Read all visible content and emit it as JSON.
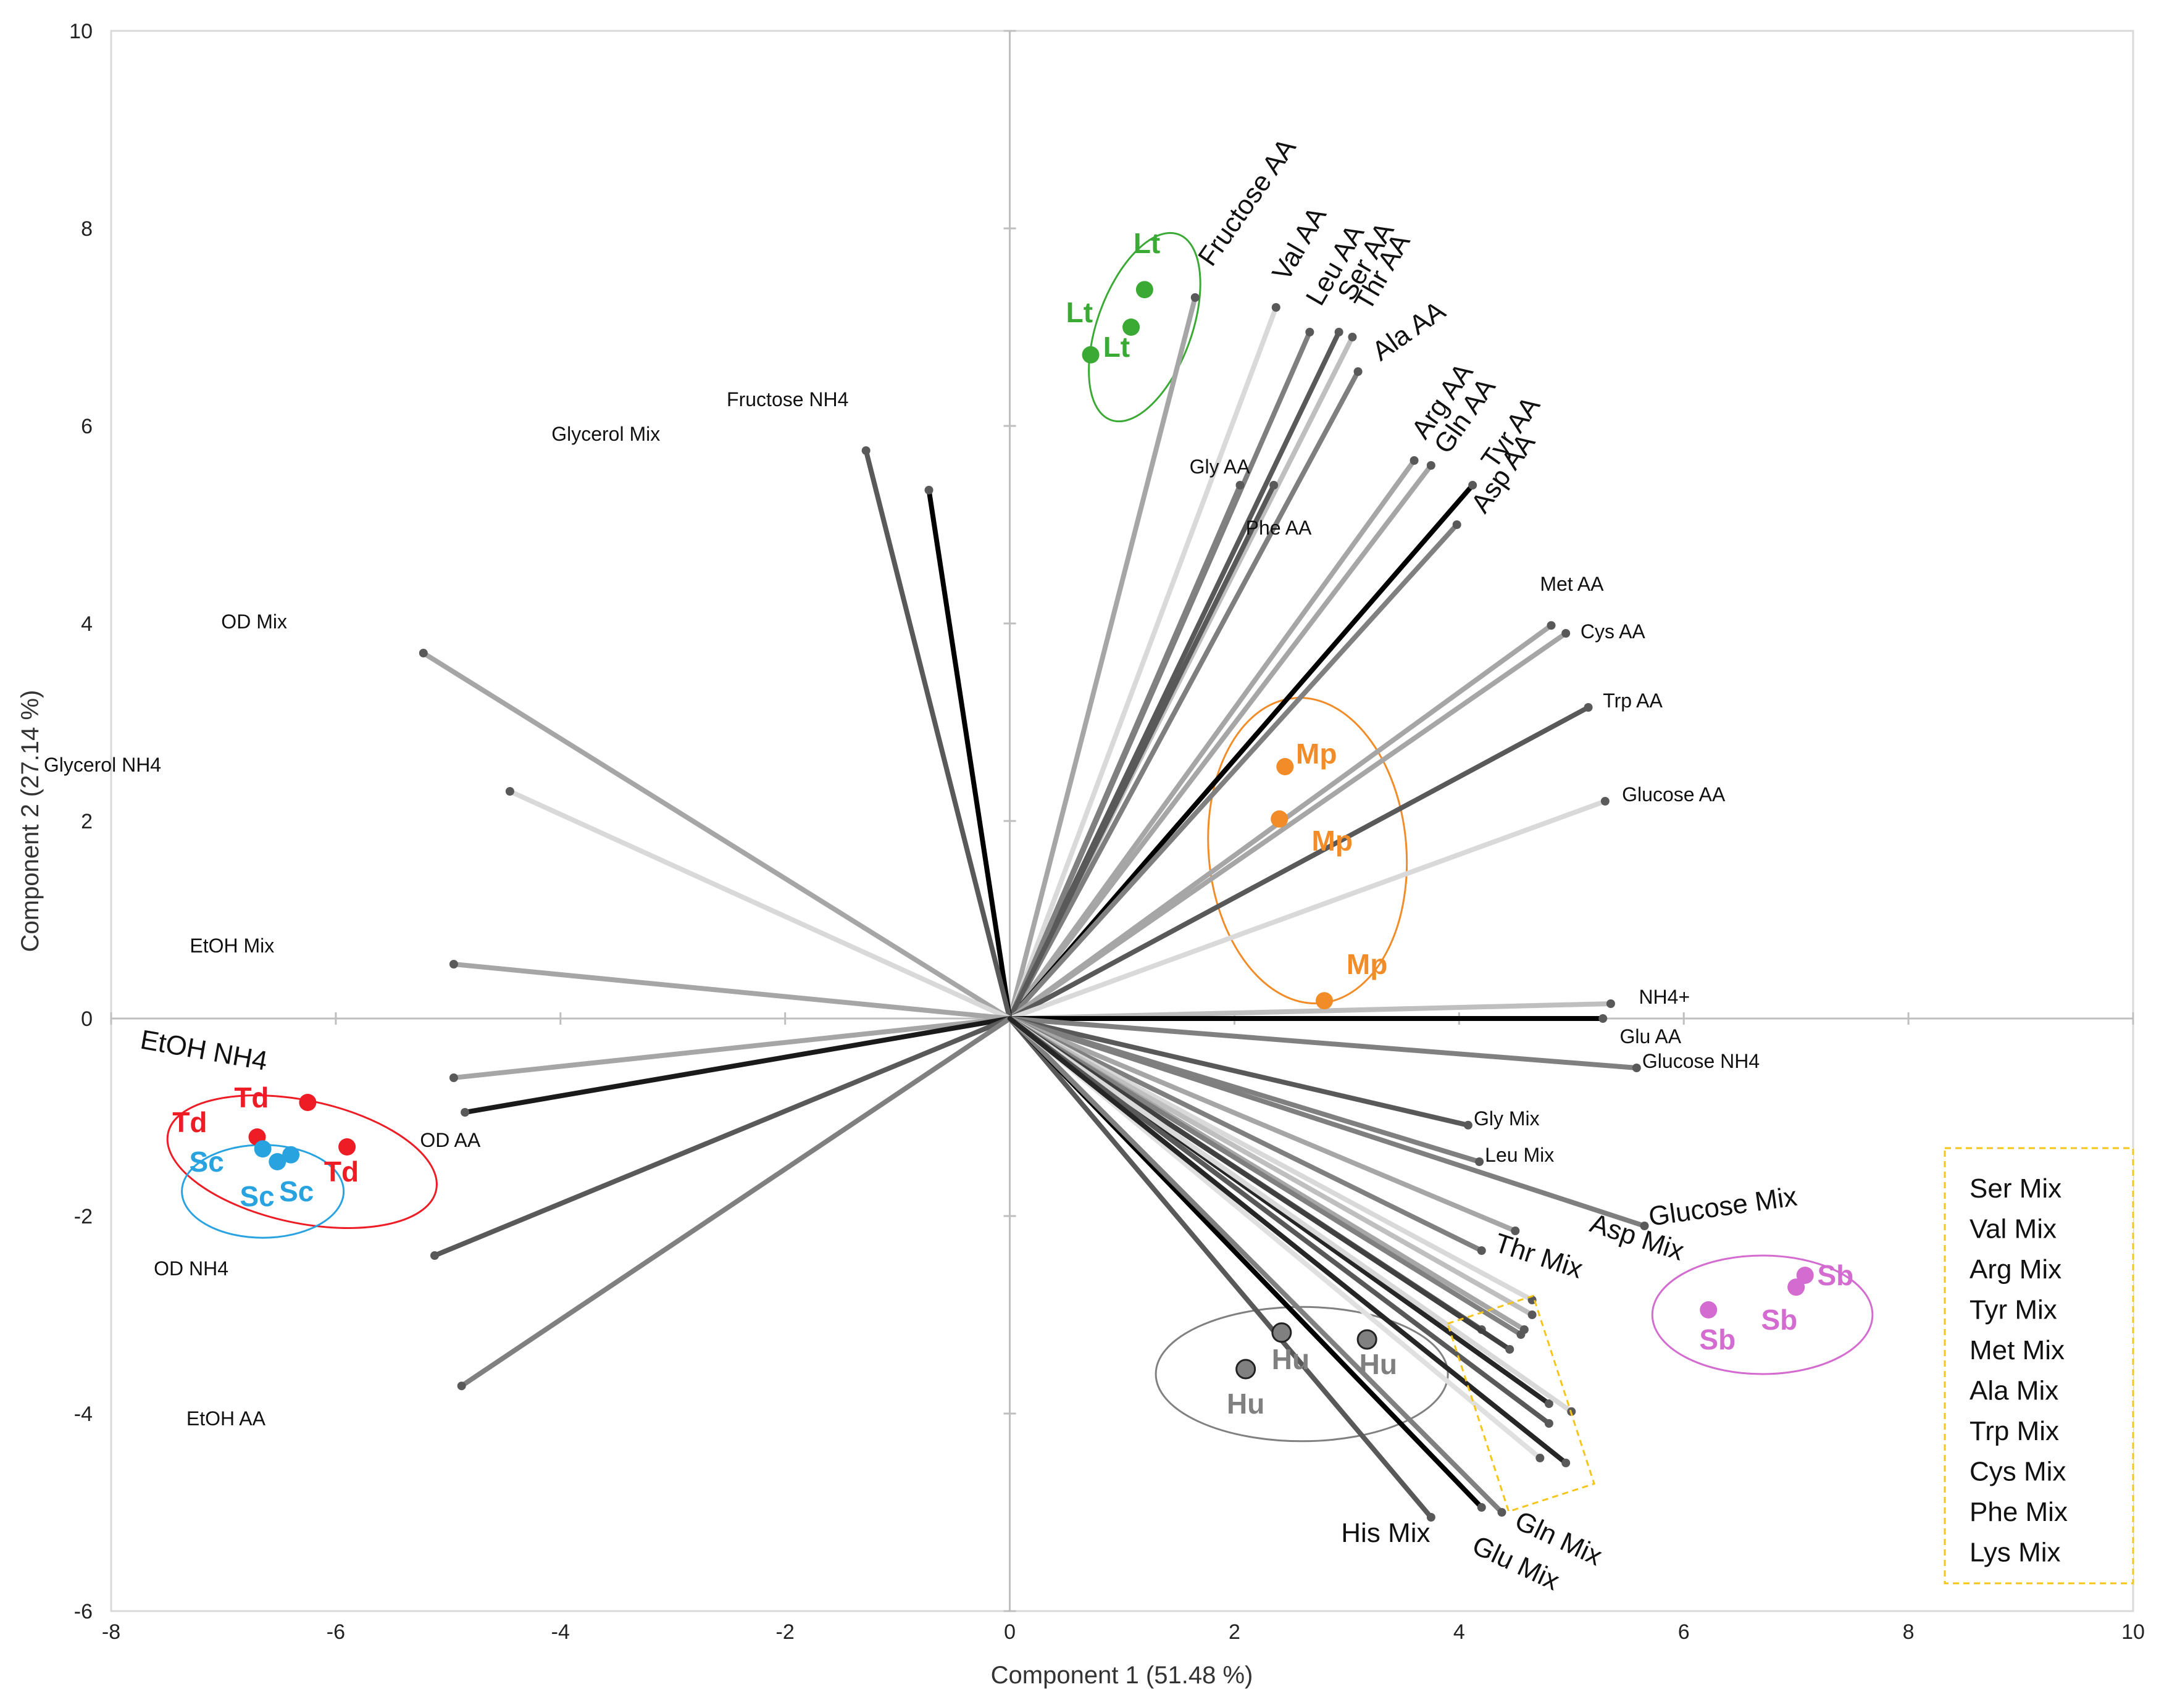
{
  "chart_data": {
    "type": "biplot",
    "xlabel": "Component 1 (51.48 %)",
    "ylabel": "Component 2 (27.14 %)",
    "xlim": [
      -8,
      10
    ],
    "ylim": [
      -6,
      10
    ],
    "xticks": [
      "-8",
      "-6",
      "-4",
      "-2",
      "0",
      "2",
      "4",
      "6",
      "8",
      "10"
    ],
    "yticks": [
      "-6",
      "-4",
      "-2",
      "0",
      "2",
      "4",
      "6",
      "8",
      "10"
    ],
    "loadings": [
      {
        "name": "Fructose AA",
        "x": 1.65,
        "y": 7.3,
        "shade": "#a6a6a6",
        "size": "large",
        "rot": -55,
        "dx": 0.15,
        "dy": 0.3
      },
      {
        "name": "Val AA",
        "x": 2.37,
        "y": 7.2,
        "shade": "#d9d9d9",
        "size": "large",
        "rot": -60,
        "dx": 0.1,
        "dy": 0.25
      },
      {
        "name": "Leu AA",
        "x": 2.67,
        "y": 6.95,
        "shade": "#7f7f7f",
        "size": "large",
        "rot": -60,
        "dx": 0.1,
        "dy": 0.25
      },
      {
        "name": "Ser AA",
        "x": 2.93,
        "y": 6.95,
        "shade": "#595959",
        "size": "large",
        "rot": -60,
        "dx": 0.12,
        "dy": 0.3
      },
      {
        "name": "Thr AA",
        "x": 3.05,
        "y": 6.9,
        "shade": "#bfbfbf",
        "size": "large",
        "rot": -60,
        "dx": 0.15,
        "dy": 0.25
      },
      {
        "name": "Ala AA",
        "x": 3.1,
        "y": 6.55,
        "shade": "#7f7f7f",
        "size": "large",
        "rot": -35,
        "dx": 0.2,
        "dy": 0.1
      },
      {
        "name": "Arg AA",
        "x": 3.6,
        "y": 5.65,
        "shade": "#a6a6a6",
        "size": "large",
        "rot": -55,
        "dx": 0.1,
        "dy": 0.2
      },
      {
        "name": "Gln AA",
        "x": 3.75,
        "y": 5.6,
        "shade": "#a6a6a6",
        "size": "large",
        "rot": -55,
        "dx": 0.15,
        "dy": 0.1
      },
      {
        "name": "Tyr AA",
        "x": 4.12,
        "y": 5.4,
        "shade": "#000000",
        "size": "large",
        "rot": -55,
        "dx": 0.2,
        "dy": 0.15
      },
      {
        "name": "Asp AA",
        "x": 3.98,
        "y": 5.0,
        "shade": "#808080",
        "size": "large",
        "rot": -55,
        "dx": 0.25,
        "dy": 0.1
      },
      {
        "name": "Gly AA",
        "x": 2.05,
        "y": 5.4,
        "shade": "#808080",
        "size": "small",
        "rot": 0,
        "dx": -0.45,
        "dy": 0.12
      },
      {
        "name": "Phe AA",
        "x": 2.35,
        "y": 5.4,
        "shade": "#595959",
        "size": "small",
        "rot": 0,
        "dx": -0.25,
        "dy": -0.5
      },
      {
        "name": "Met AA",
        "x": 4.82,
        "y": 3.98,
        "shade": "#a6a6a6",
        "size": "small",
        "rot": 0,
        "dx": -0.1,
        "dy": 0.35
      },
      {
        "name": "Cys AA",
        "x": 4.95,
        "y": 3.9,
        "shade": "#a6a6a6",
        "size": "small",
        "rot": 0,
        "dx": 0.13,
        "dy": -0.05
      },
      {
        "name": "Trp AA",
        "x": 5.15,
        "y": 3.15,
        "shade": "#595959",
        "size": "small",
        "rot": 0,
        "dx": 0.13,
        "dy": 0.0
      },
      {
        "name": "Glucose AA",
        "x": 5.3,
        "y": 2.2,
        "shade": "#d9d9d9",
        "size": "small",
        "rot": 0,
        "dx": 0.15,
        "dy": 0.0
      },
      {
        "name": "NH4+",
        "x": 5.35,
        "y": 0.15,
        "shade": "#bfbfbf",
        "size": "small",
        "rot": 0,
        "dx": 0.25,
        "dy": 0.0
      },
      {
        "name": "Glu AA",
        "x": 5.28,
        "y": 0.0,
        "shade": "#000000",
        "size": "small",
        "rot": 0,
        "dx": 0.15,
        "dy": -0.25
      },
      {
        "name": "Glucose NH4",
        "x": 5.58,
        "y": -0.5,
        "shade": "#808080",
        "size": "small",
        "rot": 0,
        "dx": 0.05,
        "dy": 0.0
      },
      {
        "name": "Gly Mix",
        "x": 4.08,
        "y": -1.08,
        "shade": "#595959",
        "size": "small",
        "rot": 0,
        "dx": 0.05,
        "dy": 0.0
      },
      {
        "name": "Leu Mix",
        "x": 4.18,
        "y": -1.45,
        "shade": "#808080",
        "size": "small",
        "rot": 0,
        "dx": 0.05,
        "dy": 0.0
      },
      {
        "name": "Glucose Mix",
        "x": 5.65,
        "y": -2.1,
        "shade": "#7f7f7f",
        "size": "large",
        "rot": -8,
        "dx": 0.05,
        "dy": 0.0
      },
      {
        "name": "Asp Mix",
        "x": 4.5,
        "y": -2.15,
        "shade": "#a6a6a6",
        "size": "large",
        "rot": 18,
        "dx": 0.65,
        "dy": 0.0
      },
      {
        "name": "Thr Mix",
        "x": 4.2,
        "y": -2.35,
        "shade": "#808080",
        "size": "large",
        "rot": 18,
        "dx": 0.1,
        "dy": 0.0
      },
      {
        "name": "His Mix",
        "x": 3.75,
        "y": -5.05,
        "shade": "#595959",
        "size": "large",
        "rot": 0,
        "dx": -0.8,
        "dy": -0.25
      },
      {
        "name": "Glu Mix",
        "x": 4.2,
        "y": -4.95,
        "shade": "#000000",
        "size": "large",
        "rot": 25,
        "dx": -0.1,
        "dy": -0.45
      },
      {
        "name": "Gln Mix",
        "x": 4.38,
        "y": -5.0,
        "shade": "#808080",
        "size": "large",
        "rot": 25,
        "dx": 0.1,
        "dy": -0.15
      },
      {
        "name": "Fructose NH4",
        "x": -0.72,
        "y": 5.35,
        "shade": "#000000",
        "size": "small",
        "rot": 0,
        "dx": -1.8,
        "dy": 0.85
      },
      {
        "name": "Glycerol Mix",
        "x": -1.28,
        "y": 5.75,
        "shade": "#595959",
        "size": "small",
        "rot": 0,
        "dx": -2.8,
        "dy": 0.1
      },
      {
        "name": "OD Mix",
        "x": -5.22,
        "y": 3.7,
        "shade": "#a6a6a6",
        "size": "small",
        "rot": 0,
        "dx": -1.8,
        "dy": 0.25
      },
      {
        "name": "Glycerol NH4",
        "x": -4.45,
        "y": 2.3,
        "shade": "#d9d9d9",
        "size": "small",
        "rot": 0,
        "dx": -4.15,
        "dy": 0.2
      },
      {
        "name": "EtOH Mix",
        "x": -4.95,
        "y": 0.55,
        "shade": "#a6a6a6",
        "size": "small",
        "rot": 0,
        "dx": -2.35,
        "dy": 0.12
      },
      {
        "name": "EtOH NH4",
        "x": -4.95,
        "y": -0.6,
        "shade": "#a6a6a6",
        "size": "large",
        "rot": 10,
        "dx": -2.8,
        "dy": 0.3
      },
      {
        "name": "OD AA",
        "x": -4.85,
        "y": -0.95,
        "shade": "#1a1a1a",
        "size": "small",
        "rot": 0,
        "dx": -0.4,
        "dy": -0.35
      },
      {
        "name": "OD NH4",
        "x": -5.12,
        "y": -2.4,
        "shade": "#595959",
        "size": "small",
        "rot": 0,
        "dx": -2.5,
        "dy": -0.2
      },
      {
        "name": "EtOH AA",
        "x": -4.88,
        "y": -3.72,
        "shade": "#808080",
        "size": "small",
        "rot": 0,
        "dx": -2.45,
        "dy": -0.4
      },
      {
        "name": "",
        "x": 4.65,
        "y": -2.85,
        "shade": "#d9d9d9",
        "size": "small",
        "rot": 0,
        "dx": 0,
        "dy": 0
      },
      {
        "name": "",
        "x": 4.65,
        "y": -3.0,
        "shade": "#bfbfbf",
        "size": "small",
        "rot": 0,
        "dx": 0,
        "dy": 0
      },
      {
        "name": "",
        "x": 4.2,
        "y": -3.15,
        "shade": "#595959",
        "size": "small",
        "rot": 0,
        "dx": 0,
        "dy": 0
      },
      {
        "name": "",
        "x": 4.58,
        "y": -3.15,
        "shade": "#a6a6a6",
        "size": "small",
        "rot": 0,
        "dx": 0,
        "dy": 0
      },
      {
        "name": "",
        "x": 4.55,
        "y": -3.2,
        "shade": "#808080",
        "size": "small",
        "rot": 0,
        "dx": 0,
        "dy": 0
      },
      {
        "name": "",
        "x": 4.45,
        "y": -3.35,
        "shade": "#404040",
        "size": "small",
        "rot": 0,
        "dx": 0,
        "dy": 0
      },
      {
        "name": "",
        "x": 4.8,
        "y": -3.9,
        "shade": "#262626",
        "size": "small",
        "rot": 0,
        "dx": 0,
        "dy": 0
      },
      {
        "name": "",
        "x": 5.0,
        "y": -3.98,
        "shade": "#d9d9d9",
        "size": "small",
        "rot": 0,
        "dx": 0,
        "dy": 0
      },
      {
        "name": "",
        "x": 4.8,
        "y": -4.1,
        "shade": "#595959",
        "size": "small",
        "rot": 0,
        "dx": 0,
        "dy": 0
      },
      {
        "name": "",
        "x": 4.72,
        "y": -4.45,
        "shade": "#e0e0e0",
        "size": "small",
        "rot": 0,
        "dx": 0,
        "dy": 0
      },
      {
        "name": "",
        "x": 4.95,
        "y": -4.5,
        "shade": "#262626",
        "size": "small",
        "rot": 0,
        "dx": 0,
        "dy": 0
      }
    ],
    "groups": [
      {
        "name": "Lt",
        "color": "#3aaa35",
        "points": [
          [
            1.2,
            7.38
          ],
          [
            1.08,
            7.0
          ],
          [
            0.72,
            6.72
          ]
        ],
        "labels": [
          [
            1.22,
            7.75
          ],
          [
            0.62,
            7.05
          ],
          [
            0.95,
            6.7
          ]
        ],
        "ellipse": {
          "cx": 1.2,
          "cy": 7.0,
          "rx": 0.42,
          "ry": 1.0,
          "rot": 20
        }
      },
      {
        "name": "Mp",
        "color": "#f28c28",
        "points": [
          [
            2.45,
            2.55
          ],
          [
            2.4,
            2.02
          ],
          [
            2.8,
            0.18
          ]
        ],
        "labels": [
          [
            2.73,
            2.58
          ],
          [
            2.87,
            1.7
          ],
          [
            3.18,
            0.45
          ]
        ],
        "ellipse": {
          "cx": 2.65,
          "cy": 1.7,
          "rx": 0.88,
          "ry": 1.55,
          "rot": -5
        }
      },
      {
        "name": "Td",
        "color": "#ee1c25",
        "points": [
          [
            -6.25,
            -0.85
          ],
          [
            -6.7,
            -1.2
          ],
          [
            -5.9,
            -1.3
          ]
        ],
        "labels": [
          [
            -6.75,
            -0.9
          ],
          [
            -7.3,
            -1.15
          ],
          [
            -5.95,
            -1.65
          ]
        ],
        "ellipse": {
          "cx": -6.3,
          "cy": -1.45,
          "rx": 1.22,
          "ry": 0.62,
          "rot": 12
        }
      },
      {
        "name": "Sc",
        "color": "#29a3e0",
        "points": [
          [
            -6.65,
            -1.32
          ],
          [
            -6.52,
            -1.45
          ],
          [
            -6.4,
            -1.38
          ]
        ],
        "labels": [
          [
            -7.15,
            -1.55
          ],
          [
            -6.7,
            -1.9
          ],
          [
            -6.35,
            -1.85
          ]
        ],
        "ellipse": {
          "cx": -6.65,
          "cy": -1.75,
          "rx": 0.72,
          "ry": 0.47,
          "rot": 0
        }
      },
      {
        "name": "Sb",
        "color": "#d36bd0",
        "points": [
          [
            7.08,
            -2.6
          ],
          [
            7.0,
            -2.72
          ],
          [
            6.22,
            -2.95
          ]
        ],
        "labels": [
          [
            7.35,
            -2.7
          ],
          [
            6.85,
            -3.15
          ],
          [
            6.3,
            -3.35
          ]
        ],
        "ellipse": {
          "cx": 6.7,
          "cy": -3.0,
          "rx": 0.98,
          "ry": 0.6,
          "rot": 0
        }
      },
      {
        "name": "Hu",
        "color": "#808080",
        "points": [
          [
            2.42,
            -3.18
          ],
          [
            3.18,
            -3.25
          ],
          [
            2.1,
            -3.55
          ]
        ],
        "labels": [
          [
            2.5,
            -3.55
          ],
          [
            3.28,
            -3.6
          ],
          [
            2.1,
            -4.0
          ]
        ],
        "ellipse": {
          "cx": 2.6,
          "cy": -3.6,
          "rx": 1.3,
          "ry": 0.68,
          "rot": 0
        }
      }
    ],
    "legend": {
      "items": [
        "Ser Mix",
        "Val Mix",
        "Arg Mix",
        "Tyr Mix",
        "Met Mix",
        "Ala Mix",
        "Trp Mix",
        "Cys Mix",
        "Phe Mix",
        "Lys Mix"
      ],
      "border_color": "#f5c518"
    }
  }
}
